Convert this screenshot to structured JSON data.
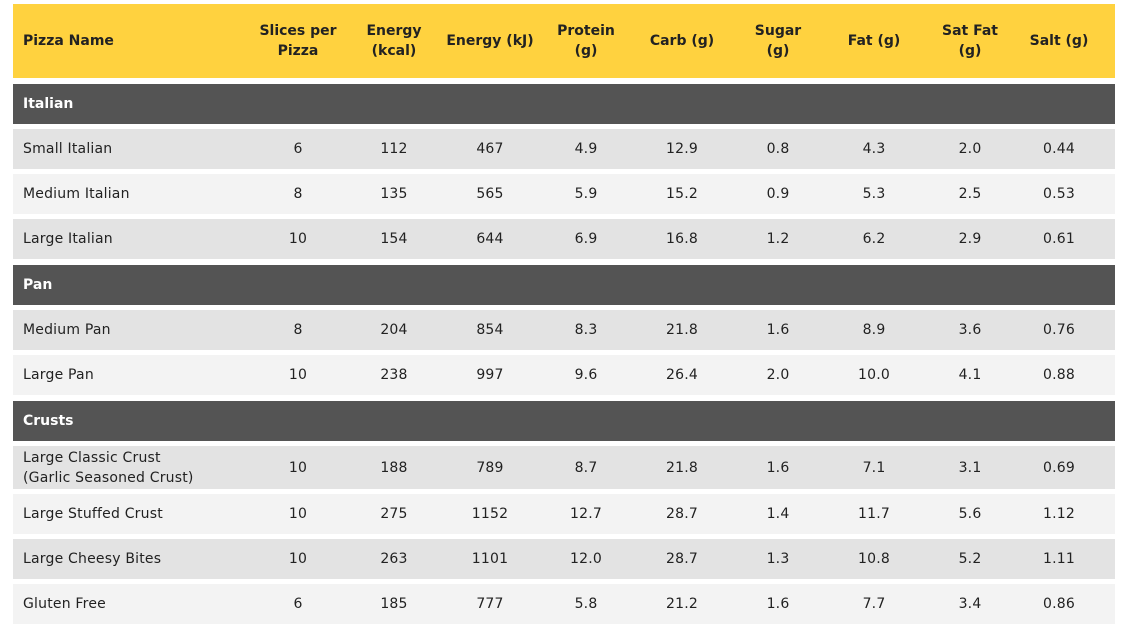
{
  "headers": [
    "Pizza Name",
    "Slices per Pizza",
    "Energy (kcal)",
    "Energy (kJ)",
    "Protein (g)",
    "Carb (g)",
    "Sugar (g)",
    "Fat (g)",
    "Sat Fat (g)",
    "Salt (g)"
  ],
  "header_lines": [
    [
      "Pizza Name"
    ],
    [
      "Slices per",
      "Pizza"
    ],
    [
      "Energy",
      "(kcal)"
    ],
    [
      "Energy (kJ)"
    ],
    [
      "Protein (g)"
    ],
    [
      "Carb (g)"
    ],
    [
      "Sugar (g)"
    ],
    [
      "Fat (g)"
    ],
    [
      "Sat Fat (g)"
    ],
    [
      "Salt (g)"
    ]
  ],
  "sections": [
    {
      "title": "Italian",
      "rows": [
        [
          "Small Italian",
          "6",
          "112",
          "467",
          "4.9",
          "12.9",
          "0.8",
          "4.3",
          "2.0",
          "0.44"
        ],
        [
          "Medium Italian",
          "8",
          "135",
          "565",
          "5.9",
          "15.2",
          "0.9",
          "5.3",
          "2.5",
          "0.53"
        ],
        [
          "Large Italian",
          "10",
          "154",
          "644",
          "6.9",
          "16.8",
          "1.2",
          "6.2",
          "2.9",
          "0.61"
        ]
      ]
    },
    {
      "title": "Pan",
      "rows": [
        [
          "Medium Pan",
          "8",
          "204",
          "854",
          "8.3",
          "21.8",
          "1.6",
          "8.9",
          "3.6",
          "0.76"
        ],
        [
          "Large Pan",
          "10",
          "238",
          "997",
          "9.6",
          "26.4",
          "2.0",
          "10.0",
          "4.1",
          "0.88"
        ]
      ]
    },
    {
      "title": "Crusts",
      "rows": [
        [
          "Large Classic Crust (Garlic Seasoned Crust)",
          "10",
          "188",
          "789",
          "8.7",
          "21.8",
          "1.6",
          "7.1",
          "3.1",
          "0.69"
        ],
        [
          "Large Stuffed Crust",
          "10",
          "275",
          "1152",
          "12.7",
          "28.7",
          "1.4",
          "11.7",
          "5.6",
          "1.12"
        ],
        [
          "Large Cheesy Bites",
          "10",
          "263",
          "1101",
          "12.0",
          "28.7",
          "1.3",
          "10.8",
          "5.2",
          "1.11"
        ],
        [
          "Gluten Free",
          "6",
          "185",
          "777",
          "5.8",
          "21.2",
          "1.6",
          "7.7",
          "3.4",
          "0.86"
        ]
      ]
    }
  ],
  "colors": {
    "header_bg": "#ffd23f",
    "section_bg": "#545454",
    "row_odd": "#e3e3e3",
    "row_even": "#f3f3f3"
  }
}
